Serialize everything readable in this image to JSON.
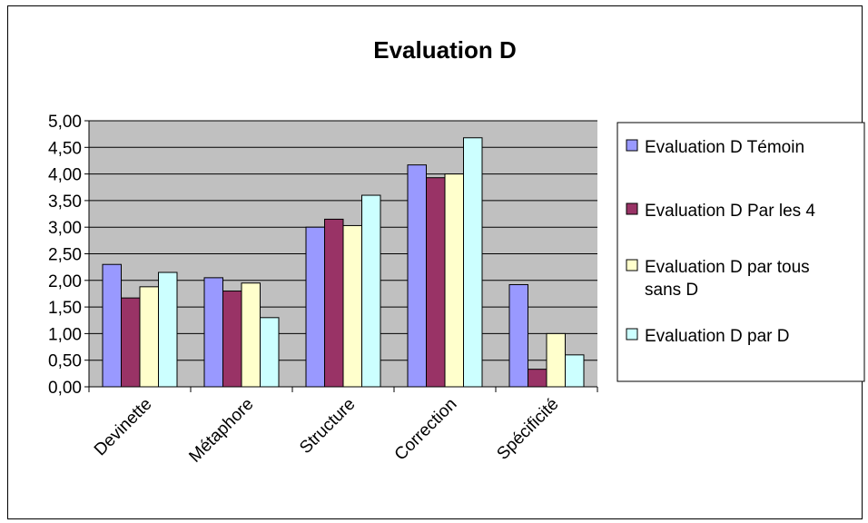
{
  "chart_data": {
    "type": "bar",
    "title": "Evaluation D",
    "categories": [
      "Devinette",
      "Métaphore",
      "Structure",
      "Correction",
      "Spécificité"
    ],
    "series": [
      {
        "name": "Evaluation D Témoin",
        "name_lines": [
          "Evaluation D Témoin"
        ],
        "color": "#9999ff",
        "values": [
          2.3,
          2.05,
          3.0,
          4.17,
          1.92
        ]
      },
      {
        "name": "Evaluation D Par les 4",
        "name_lines": [
          "Evaluation D Par les 4"
        ],
        "color": "#993366",
        "values": [
          1.67,
          1.8,
          3.15,
          3.93,
          0.33
        ]
      },
      {
        "name": "Evaluation D par tous sans D",
        "name_lines": [
          "Evaluation D par tous",
          "sans D"
        ],
        "color": "#ffffcc",
        "values": [
          1.88,
          1.95,
          3.03,
          4.0,
          1.0
        ]
      },
      {
        "name": "Evaluation D par D",
        "name_lines": [
          "Evaluation D par D"
        ],
        "color": "#ccffff",
        "values": [
          2.15,
          1.3,
          3.6,
          4.68,
          0.6
        ]
      }
    ],
    "ylim": [
      0,
      5
    ],
    "y_ticks": [
      "0,00",
      "0,50",
      "1,00",
      "1,50",
      "2,00",
      "2,50",
      "3,00",
      "3,50",
      "4,00",
      "4,50",
      "5,00"
    ],
    "xlabel": "",
    "ylabel": "",
    "grid": true,
    "plot_background": "#c0c0c0",
    "legend_position": "right"
  }
}
